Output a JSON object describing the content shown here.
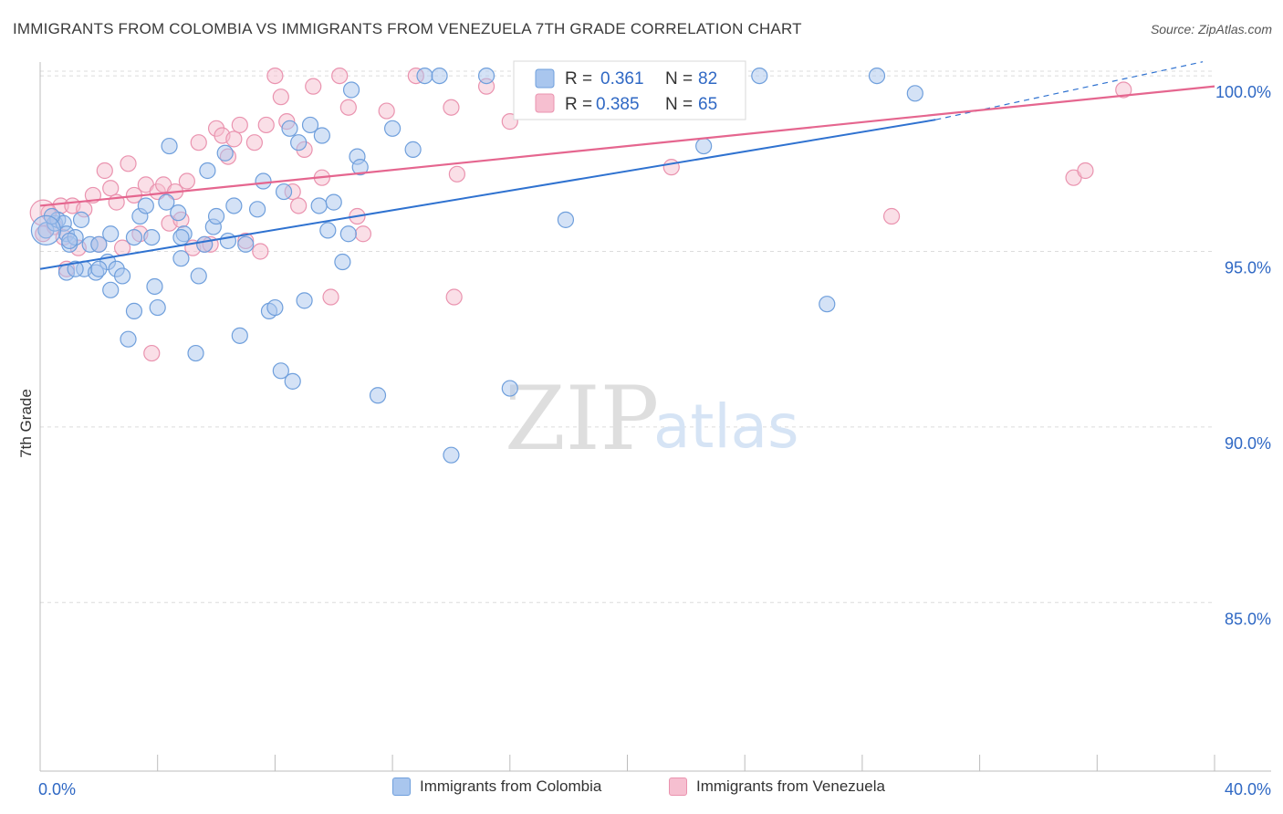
{
  "title": "IMMIGRANTS FROM COLOMBIA VS IMMIGRANTS FROM VENEZUELA 7TH GRADE CORRELATION CHART",
  "source": "Source: ZipAtlas.com",
  "watermark": {
    "zip": "ZIP",
    "atlas": "atlas"
  },
  "colors": {
    "colombia_fill": "#a9c6ee",
    "colombia_stroke": "#6f9fdc",
    "colombia_line": "#2f72d0",
    "venezuela_fill": "#f6bfd0",
    "venezuela_stroke": "#ea93af",
    "venezuela_line": "#e5668f",
    "value_text": "#2f68c4",
    "grid": "#dcdcdc"
  },
  "legend_top": {
    "rows": [
      {
        "r_label": "R =",
        "r_value": "0.361",
        "n_label": "N =",
        "n_value": "82"
      },
      {
        "r_label": "R =",
        "r_value": "0.385",
        "n_label": "N =",
        "n_value": "65"
      }
    ]
  },
  "legend_bottom": {
    "items": [
      {
        "label": "Immigrants from Colombia"
      },
      {
        "label": "Immigrants from Venezuela"
      }
    ]
  },
  "chart_data": {
    "type": "scatter",
    "title": "IMMIGRANTS FROM COLOMBIA VS IMMIGRANTS FROM VENEZUELA 7TH GRADE CORRELATION CHART",
    "xlabel": "",
    "ylabel": "7th Grade",
    "xlim": [
      0,
      40
    ],
    "ylim": [
      80.2,
      100.6
    ],
    "x_ticks": [
      0,
      4,
      8,
      12,
      16,
      20,
      24,
      28,
      32,
      36,
      40
    ],
    "x_tick_labels": [
      "0.0%",
      "40.0%"
    ],
    "y_ticks": [
      85,
      90,
      95,
      100
    ],
    "y_tick_labels": [
      "85.0%",
      "90.0%",
      "95.0%",
      "100.0%"
    ],
    "grid": true,
    "legend_position": "top-center",
    "series": [
      {
        "name": "Immigrants from Colombia",
        "R": 0.361,
        "N": 82,
        "trend": {
          "x": [
            0,
            30.5
          ],
          "y": [
            94.5,
            98.75
          ],
          "dashed_extension_to": [
            39.6,
            100.4
          ]
        },
        "points": [
          [
            0.2,
            95.6
          ],
          [
            0.5,
            95.8
          ],
          [
            0.6,
            95.9
          ],
          [
            0.8,
            95.8
          ],
          [
            0.9,
            95.5
          ],
          [
            1.0,
            95.2
          ],
          [
            0.9,
            94.4
          ],
          [
            1.2,
            95.4
          ],
          [
            1.4,
            95.9
          ],
          [
            1.5,
            94.5
          ],
          [
            1.7,
            95.2
          ],
          [
            2.0,
            95.2
          ],
          [
            1.9,
            94.4
          ],
          [
            2.3,
            94.7
          ],
          [
            2.4,
            95.5
          ],
          [
            2.6,
            94.5
          ],
          [
            2.8,
            94.3
          ],
          [
            2.4,
            93.9
          ],
          [
            3.2,
            95.4
          ],
          [
            3.4,
            96.0
          ],
          [
            3.6,
            96.3
          ],
          [
            3.8,
            95.4
          ],
          [
            3.9,
            94.0
          ],
          [
            4.0,
            93.4
          ],
          [
            4.3,
            96.4
          ],
          [
            4.4,
            98.0
          ],
          [
            4.7,
            96.1
          ],
          [
            4.8,
            94.8
          ],
          [
            4.9,
            95.5
          ],
          [
            5.4,
            94.3
          ],
          [
            5.3,
            92.1
          ],
          [
            5.6,
            95.2
          ],
          [
            5.7,
            97.3
          ],
          [
            5.9,
            95.7
          ],
          [
            6.0,
            96.0
          ],
          [
            6.3,
            97.8
          ],
          [
            6.6,
            96.3
          ],
          [
            6.8,
            92.6
          ],
          [
            7.0,
            95.2
          ],
          [
            7.4,
            96.2
          ],
          [
            7.6,
            97.0
          ],
          [
            7.8,
            93.3
          ],
          [
            8.0,
            93.4
          ],
          [
            8.2,
            91.6
          ],
          [
            8.3,
            96.7
          ],
          [
            8.5,
            98.5
          ],
          [
            8.6,
            91.3
          ],
          [
            8.8,
            98.1
          ],
          [
            9.0,
            93.6
          ],
          [
            9.2,
            98.6
          ],
          [
            9.5,
            96.3
          ],
          [
            9.6,
            98.3
          ],
          [
            9.8,
            95.6
          ],
          [
            10.0,
            96.4
          ],
          [
            10.3,
            94.7
          ],
          [
            10.5,
            95.5
          ],
          [
            10.6,
            99.6
          ],
          [
            10.8,
            97.7
          ],
          [
            10.9,
            97.4
          ],
          [
            11.5,
            90.9
          ],
          [
            12.0,
            98.5
          ],
          [
            12.7,
            97.9
          ],
          [
            13.1,
            100.0
          ],
          [
            13.6,
            100.0
          ],
          [
            14.0,
            89.2
          ],
          [
            15.2,
            100.0
          ],
          [
            16.0,
            91.1
          ],
          [
            17.9,
            95.9
          ],
          [
            20.9,
            100.0
          ],
          [
            22.6,
            98.0
          ],
          [
            24.5,
            100.0
          ],
          [
            26.8,
            93.5
          ],
          [
            28.5,
            100.0
          ],
          [
            29.8,
            99.5
          ],
          [
            1.0,
            95.3
          ],
          [
            3.0,
            92.5
          ],
          [
            2.0,
            94.5
          ],
          [
            1.2,
            94.5
          ],
          [
            0.4,
            96.0
          ],
          [
            3.2,
            93.3
          ],
          [
            6.4,
            95.3
          ],
          [
            4.8,
            95.4
          ]
        ]
      },
      {
        "name": "Immigrants from Venezuela",
        "R": 0.385,
        "N": 65,
        "trend": {
          "x": [
            0,
            40
          ],
          "y": [
            96.3,
            99.7
          ]
        },
        "points": [
          [
            0.1,
            95.5
          ],
          [
            0.3,
            96.1
          ],
          [
            0.5,
            95.7
          ],
          [
            0.7,
            96.3
          ],
          [
            0.8,
            95.4
          ],
          [
            0.9,
            94.5
          ],
          [
            1.1,
            96.3
          ],
          [
            1.3,
            95.1
          ],
          [
            1.5,
            96.2
          ],
          [
            1.8,
            96.6
          ],
          [
            2.0,
            95.2
          ],
          [
            2.2,
            97.3
          ],
          [
            2.4,
            96.8
          ],
          [
            2.6,
            96.4
          ],
          [
            2.8,
            95.1
          ],
          [
            3.0,
            97.5
          ],
          [
            3.2,
            96.6
          ],
          [
            3.4,
            95.5
          ],
          [
            3.6,
            96.9
          ],
          [
            3.8,
            92.1
          ],
          [
            4.0,
            96.7
          ],
          [
            4.2,
            96.9
          ],
          [
            4.4,
            95.8
          ],
          [
            4.6,
            96.7
          ],
          [
            4.8,
            95.9
          ],
          [
            5.0,
            97.0
          ],
          [
            5.2,
            95.1
          ],
          [
            5.4,
            98.1
          ],
          [
            5.6,
            95.2
          ],
          [
            5.8,
            95.2
          ],
          [
            6.0,
            98.5
          ],
          [
            6.2,
            98.3
          ],
          [
            6.4,
            97.7
          ],
          [
            6.6,
            98.2
          ],
          [
            6.8,
            98.6
          ],
          [
            7.0,
            95.3
          ],
          [
            7.3,
            98.1
          ],
          [
            7.5,
            95.0
          ],
          [
            7.7,
            98.6
          ],
          [
            8.0,
            100.0
          ],
          [
            8.2,
            99.4
          ],
          [
            8.4,
            98.7
          ],
          [
            8.6,
            96.7
          ],
          [
            8.8,
            96.3
          ],
          [
            9.0,
            97.9
          ],
          [
            9.3,
            99.7
          ],
          [
            9.6,
            97.1
          ],
          [
            9.9,
            93.7
          ],
          [
            10.2,
            100.0
          ],
          [
            10.5,
            99.1
          ],
          [
            10.8,
            96.0
          ],
          [
            11.0,
            95.5
          ],
          [
            11.8,
            99.0
          ],
          [
            12.8,
            100.0
          ],
          [
            14.0,
            99.1
          ],
          [
            14.2,
            97.2
          ],
          [
            14.1,
            93.7
          ],
          [
            15.2,
            99.7
          ],
          [
            16.0,
            98.7
          ],
          [
            16.4,
            100.0
          ],
          [
            21.5,
            97.4
          ],
          [
            29.0,
            96.0
          ],
          [
            35.2,
            97.1
          ],
          [
            35.6,
            97.3
          ],
          [
            36.9,
            99.6
          ]
        ]
      }
    ]
  }
}
